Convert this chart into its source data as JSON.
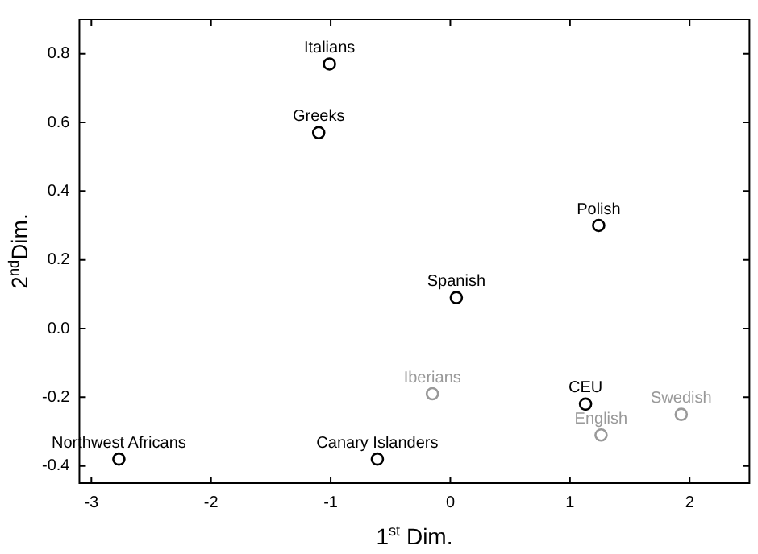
{
  "chart_data": {
    "type": "scatter",
    "xlabel": "1$^{st}$ Dim.",
    "ylabel": "2$^{nd}$Dim.",
    "xlim": [
      -3.1,
      2.5
    ],
    "xticks": [
      -3,
      -2,
      -1,
      0,
      1,
      2
    ],
    "ylim": [
      -0.45,
      0.9
    ],
    "yticks": [
      -0.4,
      -0.2,
      {
        "value": 0,
        "label": "0.0"
      },
      0.2,
      0.4,
      0.6,
      0.8
    ],
    "grid": false,
    "legend": false,
    "marker": "circle",
    "series": [
      {
        "x": [
          -1.01,
          -1.1,
          1.24,
          0.05,
          -0.15,
          1.13,
          1.26,
          1.93,
          -2.77,
          -0.61
        ],
        "values": [
          0.77,
          0.57,
          0.3,
          0.09,
          -0.19,
          -0.22,
          -0.31,
          -0.25,
          -0.38,
          -0.38
        ],
        "colors": [
          "#000000",
          "#000000",
          "#000000",
          "#000000",
          "#999999",
          "#000000",
          "#999999",
          "#999999",
          "#000000",
          "#000000"
        ]
      }
    ],
    "annotations": [
      {
        "text": "Italians",
        "x": -1.01,
        "y": 0.77
      },
      {
        "text": "Greeks",
        "x": -1.1,
        "y": 0.57
      },
      {
        "text": "Polish",
        "x": 1.24,
        "y": 0.3
      },
      {
        "text": "Spanish",
        "x": 0.05,
        "y": 0.09
      },
      {
        "text": "Iberians",
        "x": -0.15,
        "y": -0.19
      },
      {
        "text": "CEU",
        "x": 1.13,
        "y": -0.22
      },
      {
        "text": "English",
        "x": 1.26,
        "y": -0.31
      },
      {
        "text": "Swedish",
        "x": 1.93,
        "y": -0.25
      },
      {
        "text": "Northwest Africans",
        "x": -2.77,
        "y": -0.38
      },
      {
        "text": "Canary Islanders",
        "x": -0.61,
        "y": -0.38
      }
    ]
  }
}
